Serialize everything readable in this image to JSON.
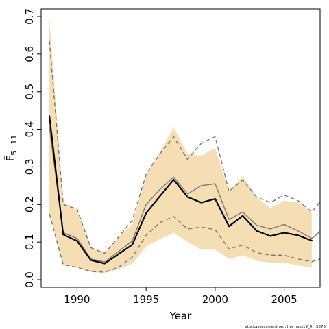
{
  "chart_data": {
    "type": "line",
    "xlabel": "Year",
    "ylabel": "F̄",
    "ylabel_subscript": "5−11",
    "footnote": "stockassessment.org, her nsss19_4, r5575",
    "xlim": [
      1987.4,
      2007.6
    ],
    "ylim": [
      -0.02,
      0.72
    ],
    "x_ticks": [
      1990,
      1995,
      2000,
      2005
    ],
    "y_ticks": [
      0.0,
      0.1,
      0.2,
      0.3,
      0.4,
      0.5,
      0.6,
      0.7
    ],
    "x_tick_labels": [
      "1990",
      "1995",
      "2000",
      "2005"
    ],
    "y_tick_labels": [
      "0.0",
      "0.1",
      "0.2",
      "0.3",
      "0.4",
      "0.5",
      "0.6",
      "0.7"
    ],
    "colors": {
      "band": "#f5deb3",
      "main": "#000000",
      "grey": "#777777"
    },
    "x": [
      1988,
      1989,
      1990,
      1991,
      1992,
      1993,
      1994,
      1995,
      1996,
      1997,
      1998,
      1999,
      2000,
      2001,
      2002,
      2003,
      2004,
      2005,
      2006,
      2007
    ],
    "band": {
      "lower": [
        0.175,
        0.04,
        0.032,
        0.02,
        0.018,
        0.028,
        0.042,
        0.088,
        0.108,
        0.125,
        0.101,
        0.08,
        0.08,
        0.055,
        0.065,
        0.05,
        0.045,
        0.045,
        0.038,
        0.032
      ],
      "upper": [
        0.695,
        0.205,
        0.185,
        0.085,
        0.072,
        0.112,
        0.148,
        0.275,
        0.338,
        0.405,
        0.335,
        0.33,
        0.35,
        0.235,
        0.275,
        0.22,
        0.19,
        0.21,
        0.205,
        0.178
      ]
    },
    "series": [
      {
        "values": [
          0.435,
          0.12,
          0.103,
          0.052,
          0.043,
          0.068,
          0.093,
          0.177,
          0.222,
          0.266,
          0.22,
          0.205,
          0.215,
          0.142,
          0.17,
          0.13,
          0.116,
          0.125,
          0.118,
          0.104
        ],
        "style": "solid-thick-black"
      },
      {
        "x": [
          1988,
          1989,
          1990,
          1991,
          1992,
          1993,
          1994,
          1995,
          1996,
          1997,
          1998,
          1999,
          2000,
          2001,
          2002,
          2003,
          2004,
          2005,
          2006,
          2007,
          2008
        ],
        "values": [
          0.405,
          0.125,
          0.11,
          0.055,
          0.047,
          0.075,
          0.103,
          0.2,
          0.24,
          0.273,
          0.228,
          0.25,
          0.255,
          0.16,
          0.18,
          0.145,
          0.135,
          0.147,
          0.13,
          0.11,
          0.14
        ],
        "style": "solid-grey"
      },
      {
        "x": [
          1988,
          1989,
          1990,
          1991,
          1992,
          1993,
          1994,
          1995,
          1996,
          1997,
          1998,
          1999,
          2000,
          2001,
          2002,
          2003,
          2004,
          2005,
          2006,
          2007,
          2008
        ],
        "values": [
          0.635,
          0.2,
          0.188,
          0.085,
          0.07,
          0.113,
          0.158,
          0.28,
          0.335,
          0.38,
          0.32,
          0.363,
          0.38,
          0.235,
          0.265,
          0.22,
          0.205,
          0.225,
          0.21,
          0.18,
          0.225
        ],
        "style": "dashed-grey"
      },
      {
        "x": [
          1988,
          1989,
          1990,
          1991,
          1992,
          1993,
          1994,
          1995,
          1996,
          1997,
          1998,
          1999,
          2000,
          2001,
          2002,
          2003,
          2004,
          2005,
          2006,
          2007,
          2008
        ],
        "values": [
          0.175,
          0.04,
          0.033,
          0.022,
          0.02,
          0.033,
          0.06,
          0.118,
          0.152,
          0.168,
          0.135,
          0.14,
          0.133,
          0.082,
          0.092,
          0.072,
          0.065,
          0.065,
          0.055,
          0.048,
          0.06
        ],
        "style": "dashed-grey"
      }
    ]
  }
}
